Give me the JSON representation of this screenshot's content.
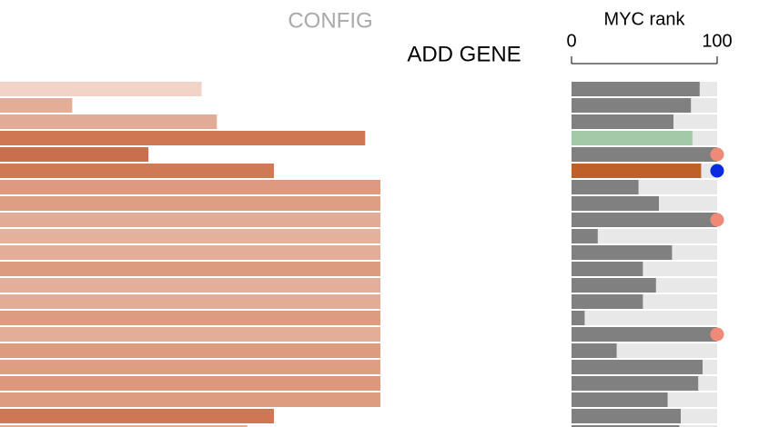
{
  "header": {
    "config": "CONFIG",
    "add_gene": "ADD GENE"
  },
  "rank_axis": {
    "title": "MYC rank",
    "xlim": [
      0,
      100
    ],
    "xticks": [
      0,
      100
    ]
  },
  "rows": [
    {
      "score": 53,
      "score_color": "#f2d3c8",
      "rank": 88,
      "rank_color": "#808080"
    },
    {
      "score": 19,
      "score_color": "#e3ad97",
      "rank": 82,
      "rank_color": "#808080"
    },
    {
      "score": 57,
      "score_color": "#e2ab95",
      "rank": 70,
      "rank_color": "#808080"
    },
    {
      "score": 96,
      "score_color": "#cf7752",
      "rank": 83,
      "rank_color": "#a3c9a8"
    },
    {
      "score": 39,
      "score_color": "#c96f4b",
      "rank": 100,
      "rank_color": "#808080",
      "marker": "#f08a78"
    },
    {
      "score": 72,
      "score_color": "#d07a55",
      "rank": 89,
      "rank_color": "#bf5f2a",
      "marker": "#0a2be0"
    },
    {
      "score": 100,
      "score_color": "#dd9a80",
      "rank": 46,
      "rank_color": "#808080"
    },
    {
      "score": 100,
      "score_color": "#de9e84",
      "rank": 60,
      "rank_color": "#808080"
    },
    {
      "score": 100,
      "score_color": "#e2ab95",
      "rank": 100,
      "rank_color": "#808080",
      "marker": "#f08a78"
    },
    {
      "score": 100,
      "score_color": "#e4b19c",
      "rank": 18,
      "rank_color": "#808080"
    },
    {
      "score": 100,
      "score_color": "#e2ae98",
      "rank": 69,
      "rank_color": "#808080"
    },
    {
      "score": 100,
      "score_color": "#dc9a7f",
      "rank": 49,
      "rank_color": "#808080"
    },
    {
      "score": 100,
      "score_color": "#e3af9a",
      "rank": 58,
      "rank_color": "#808080"
    },
    {
      "score": 100,
      "score_color": "#e2ac96",
      "rank": 49,
      "rank_color": "#808080"
    },
    {
      "score": 100,
      "score_color": "#dd9b80",
      "rank": 9,
      "rank_color": "#808080"
    },
    {
      "score": 100,
      "score_color": "#e2ae98",
      "rank": 100,
      "rank_color": "#808080",
      "marker": "#f08a78"
    },
    {
      "score": 100,
      "score_color": "#dd9b80",
      "rank": 31,
      "rank_color": "#808080"
    },
    {
      "score": 100,
      "score_color": "#de9e84",
      "rank": 90,
      "rank_color": "#808080"
    },
    {
      "score": 100,
      "score_color": "#db987d",
      "rank": 87,
      "rank_color": "#808080"
    },
    {
      "score": 100,
      "score_color": "#dd9b80",
      "rank": 66,
      "rank_color": "#808080"
    },
    {
      "score": 72,
      "score_color": "#cf7752",
      "rank": 75,
      "rank_color": "#808080"
    },
    {
      "score": 65,
      "score_color": "#e2ab95",
      "rank": 74,
      "rank_color": "#808080"
    }
  ]
}
